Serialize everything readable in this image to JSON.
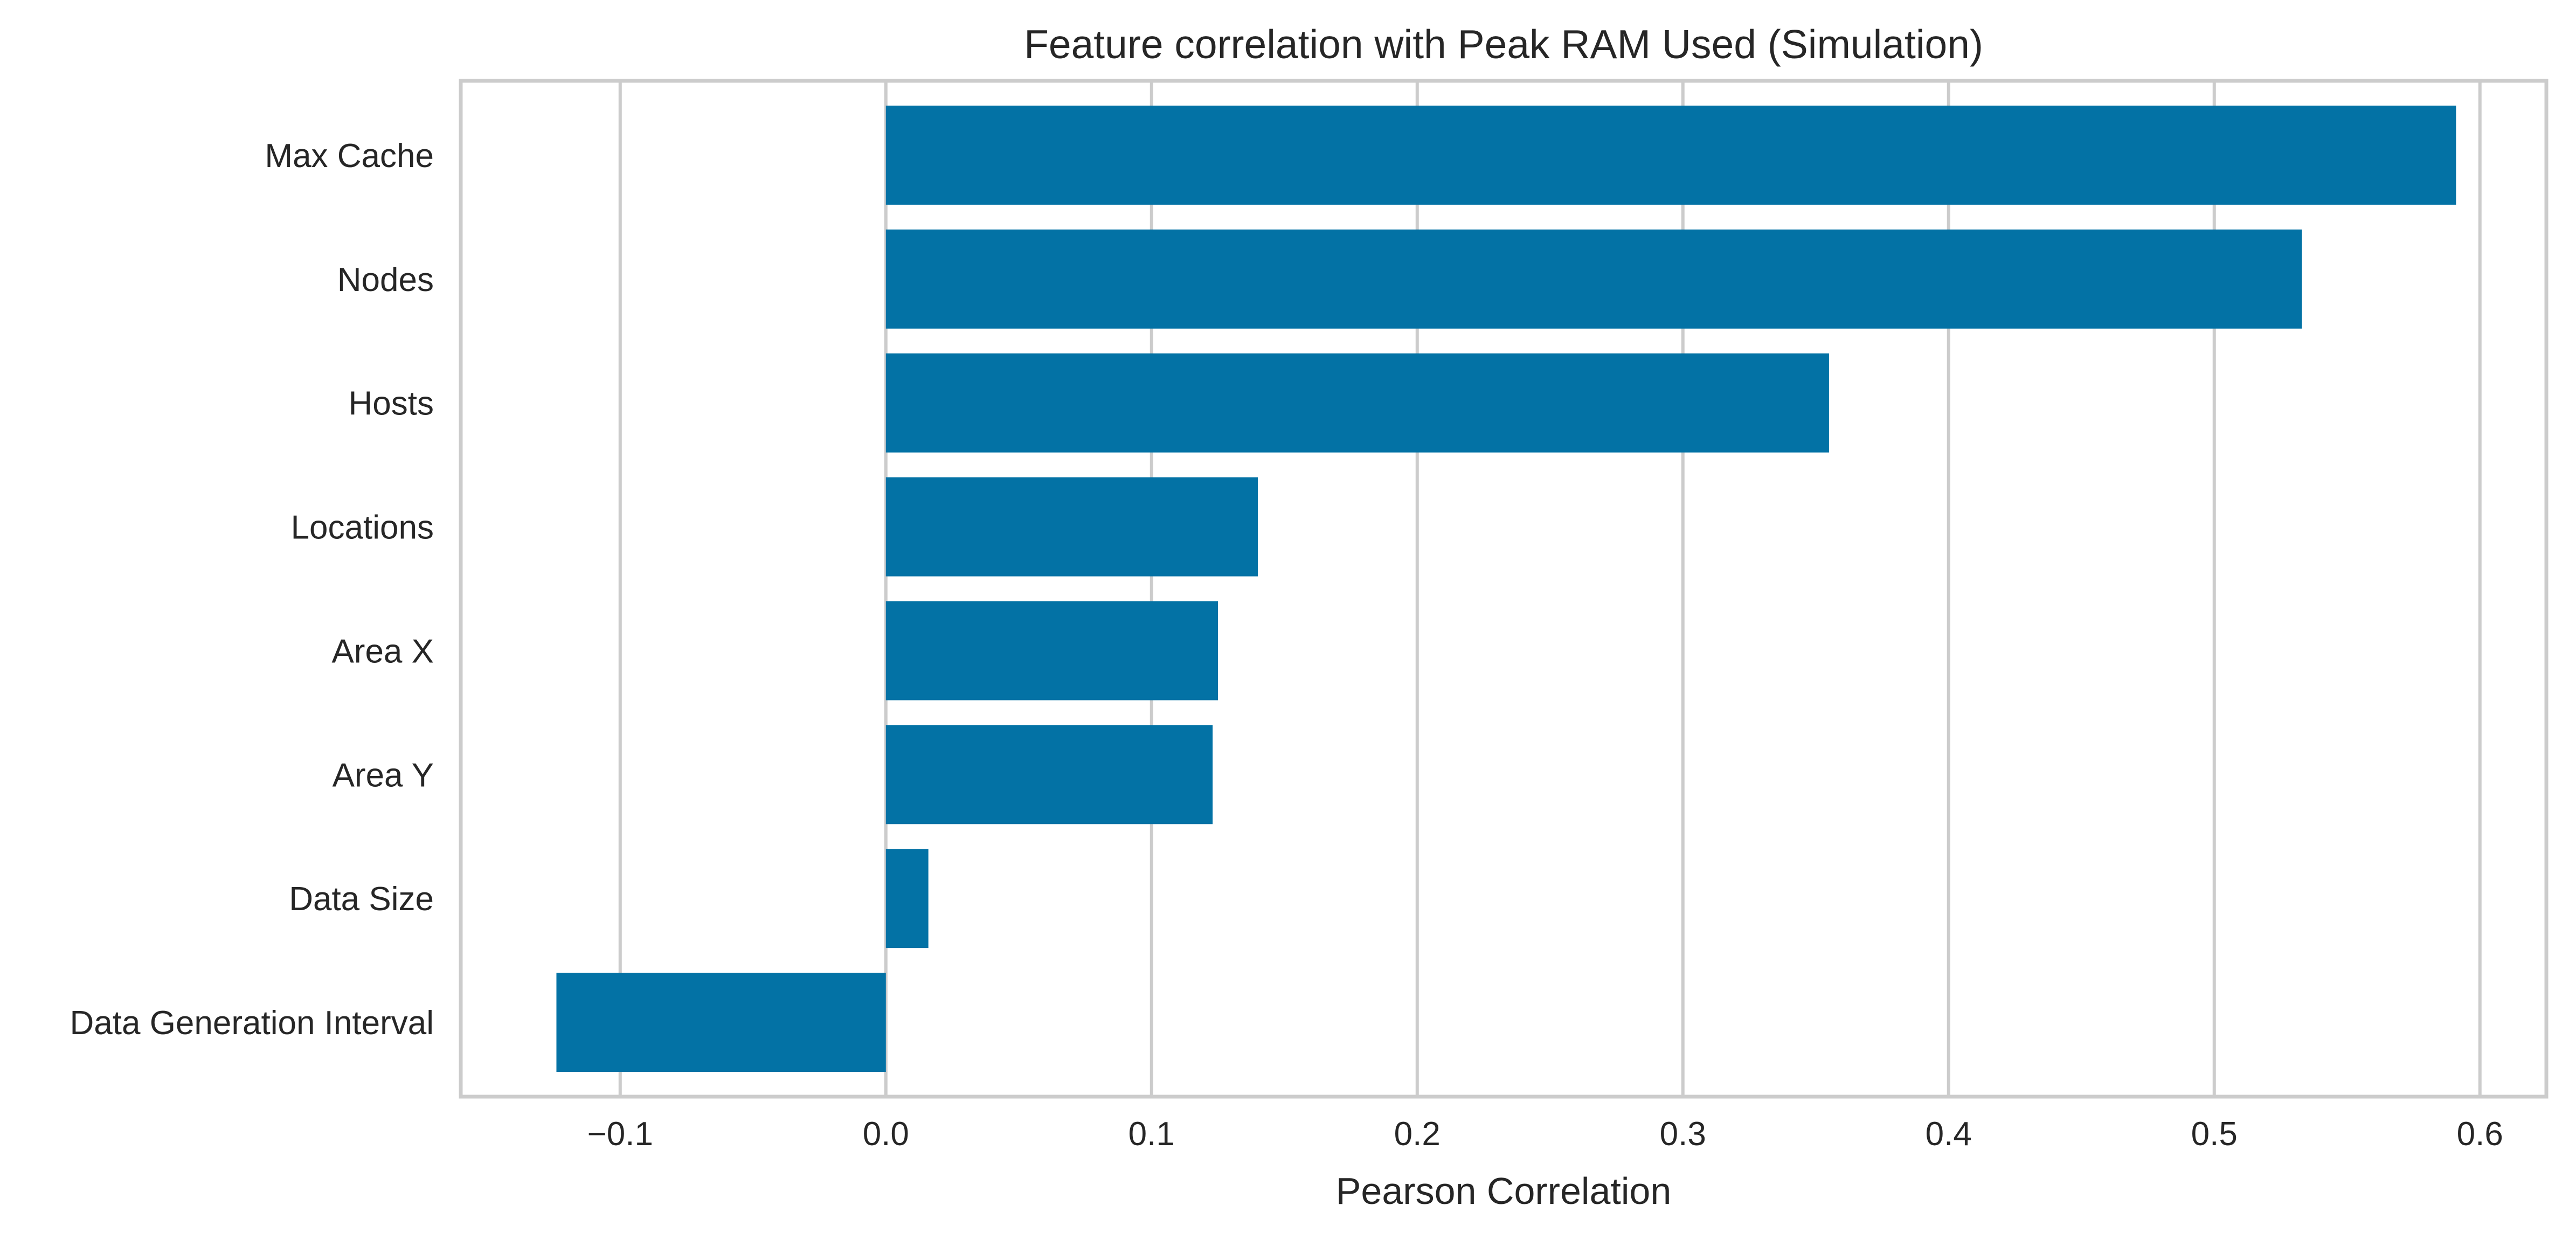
{
  "chart_data": {
    "type": "bar",
    "orientation": "horizontal",
    "title": "Feature correlation with Peak RAM Used (Simulation)",
    "xlabel": "Pearson Correlation",
    "ylabel": "",
    "categories": [
      "Max Cache",
      "Nodes",
      "Hosts",
      "Locations",
      "Area X",
      "Area Y",
      "Data Size",
      "Data Generation Interval"
    ],
    "values": [
      0.591,
      0.533,
      0.355,
      0.14,
      0.125,
      0.123,
      0.016,
      -0.124
    ],
    "xlim": [
      -0.16,
      0.625
    ],
    "xticks": [
      -0.1,
      0.0,
      0.1,
      0.2,
      0.3,
      0.4,
      0.5,
      0.6
    ],
    "xtick_labels": [
      "−0.1",
      "0.0",
      "0.1",
      "0.2",
      "0.3",
      "0.4",
      "0.5",
      "0.6"
    ],
    "grid": "vertical",
    "bar_color": "#0372a5",
    "grid_color": "#cccccc"
  }
}
